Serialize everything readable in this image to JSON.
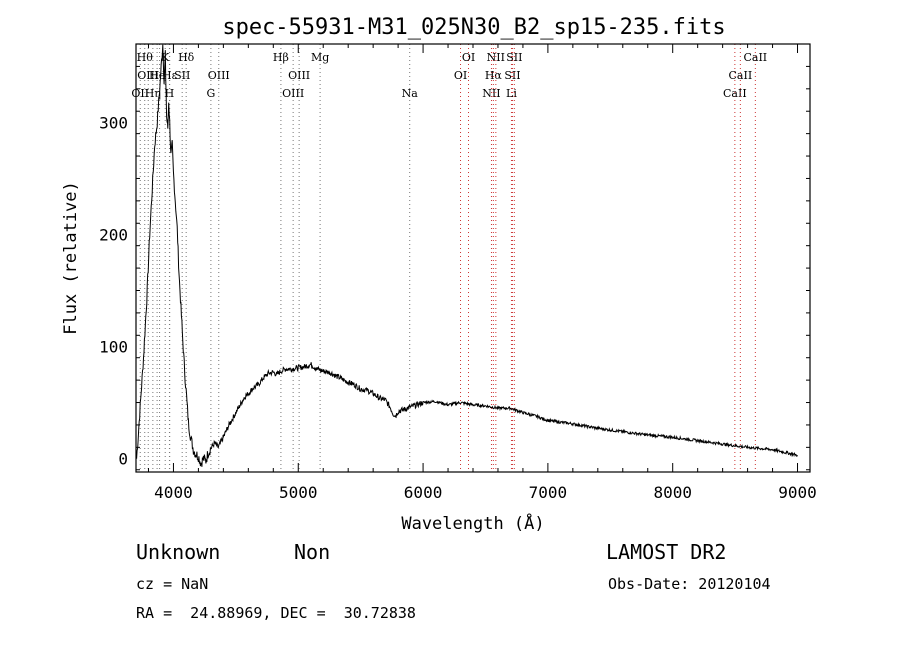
{
  "info": {
    "object_type": "Unknown",
    "subclass": "Non",
    "survey": "LAMOST DR2",
    "cz_label": "cz = NaN",
    "obs_date": "Obs-Date: 20120104",
    "radec": "RA =  24.88969, DEC =  30.72838"
  },
  "colors": {
    "axis": "#000000",
    "spectrum": "#000000",
    "line_marker": "#cc3333",
    "grid_marker": "#777777"
  },
  "chart_data": {
    "type": "line",
    "title": "spec-55931-M31_025N30_B2_sp15-235.fits",
    "xlabel": "Wavelength (Å)",
    "ylabel": "Flux (relative)",
    "xlim": [
      3700,
      9100
    ],
    "ylim": [
      -12,
      370
    ],
    "x_ticks": [
      4000,
      5000,
      6000,
      7000,
      8000,
      9000
    ],
    "y_ticks": [
      0,
      100,
      200,
      300
    ],
    "series": [
      {
        "x": [
          3705,
          3730,
          3760,
          3790,
          3810,
          3830,
          3850,
          3870,
          3890,
          3905,
          3915,
          3925,
          3935,
          3945,
          3955,
          3962,
          3970,
          3980,
          3990,
          4000,
          4015,
          4030,
          4045,
          4060,
          4075,
          4090,
          4105,
          4120,
          4140,
          4160,
          4180,
          4200,
          4220,
          4240,
          4260,
          4280,
          4300,
          4330,
          4360,
          4390,
          4420,
          4450,
          4480,
          4510,
          4540,
          4570,
          4600,
          4640,
          4680,
          4720,
          4760,
          4800,
          4830,
          4860,
          4900,
          4950,
          5000,
          5050,
          5100,
          5150,
          5200,
          5250,
          5300,
          5350,
          5400,
          5450,
          5500,
          5550,
          5600,
          5650,
          5700,
          5740,
          5760,
          5780,
          5800,
          5850,
          5900,
          5950,
          6000,
          6100,
          6200,
          6300,
          6400,
          6500,
          6600,
          6700,
          6800,
          6900,
          7000,
          7200,
          7400,
          7600,
          7800,
          8000,
          8200,
          8400,
          8600,
          8800,
          9000
        ],
        "y": [
          0,
          40,
          90,
          150,
          200,
          240,
          280,
          300,
          330,
          355,
          370,
          335,
          360,
          305,
          295,
          320,
          300,
          270,
          280,
          255,
          230,
          205,
          165,
          135,
          105,
          78,
          55,
          32,
          18,
          8,
          4,
          2,
          -4,
          0,
          -2,
          6,
          9,
          14,
          10,
          17,
          24,
          31,
          37,
          43,
          49,
          55,
          58,
          63,
          66,
          72,
          76,
          77,
          75,
          78,
          80,
          80,
          81,
          82,
          84,
          80,
          78,
          77,
          74,
          71,
          68,
          66,
          62,
          61,
          58,
          54,
          52,
          45,
          40,
          38,
          42,
          44,
          46,
          48,
          50,
          51,
          48,
          50,
          48,
          47,
          45,
          45,
          41,
          38,
          34,
          31,
          27,
          24,
          21,
          19,
          16,
          13,
          10,
          8,
          3
        ]
      }
    ],
    "lines": [
      {
        "x": 3734,
        "label": "OII",
        "row": 2
      },
      {
        "x": 3770,
        "label": "Hθ",
        "row": 0
      },
      {
        "x": 3798,
        "label": "OIII",
        "row": 1
      },
      {
        "x": 3835,
        "label": "Hη",
        "row": 2
      },
      {
        "x": 3869,
        "label": "He",
        "row": 1
      },
      {
        "x": 3889,
        "label": "",
        "row": 0
      },
      {
        "x": 3934,
        "label": "K",
        "row": 0
      },
      {
        "x": 3968,
        "label": "H",
        "row": 2
      },
      {
        "x": 3970,
        "label": "Hε",
        "row": 1
      },
      {
        "x": 4070,
        "label": "SII",
        "row": 1
      },
      {
        "x": 4102,
        "label": "Hδ",
        "row": 0
      },
      {
        "x": 4300,
        "label": "G",
        "row": 2
      },
      {
        "x": 4363,
        "label": "OIII",
        "row": 1
      },
      {
        "x": 4861,
        "label": "Hβ",
        "row": 0
      },
      {
        "x": 4959,
        "label": "OIII",
        "row": 2
      },
      {
        "x": 5007,
        "label": "OIII",
        "row": 1
      },
      {
        "x": 5175,
        "label": "Mg",
        "row": 0
      },
      {
        "x": 5893,
        "label": "Na",
        "row": 2
      },
      {
        "x": 6300,
        "label": "OI",
        "row": 1
      },
      {
        "x": 6364,
        "label": "OI",
        "row": 0
      },
      {
        "x": 6548,
        "label": "NII",
        "row": 2
      },
      {
        "x": 6563,
        "label": "Hα",
        "row": 1
      },
      {
        "x": 6583,
        "label": "NII",
        "row": 0
      },
      {
        "x": 6716,
        "label": "SII",
        "row": 1
      },
      {
        "x": 6708,
        "label": "Li",
        "row": 2
      },
      {
        "x": 6731,
        "label": "SII",
        "row": 0
      },
      {
        "x": 8498,
        "label": "CaII",
        "row": 2
      },
      {
        "x": 8542,
        "label": "CaII",
        "row": 1
      },
      {
        "x": 8662,
        "label": "CaII",
        "row": 0
      }
    ]
  }
}
